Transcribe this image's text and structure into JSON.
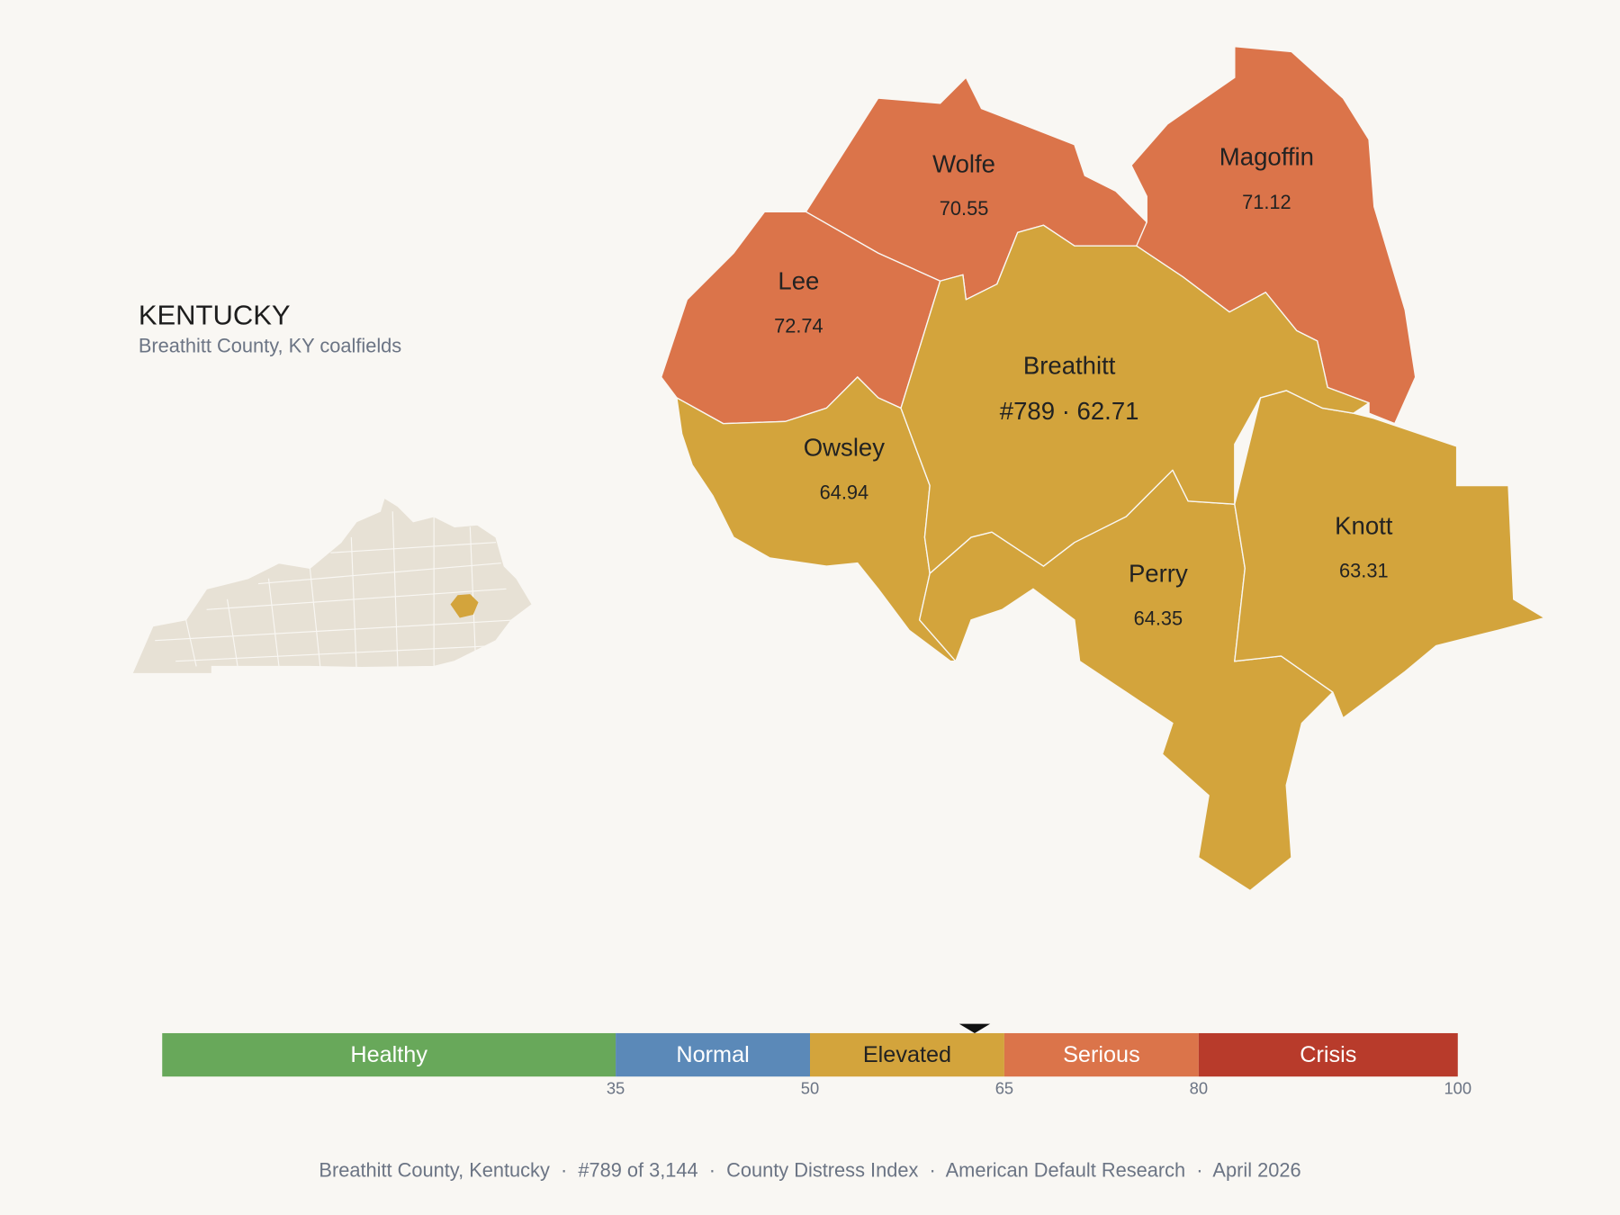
{
  "header": {
    "title": "KENTUCKY",
    "subtitle": "Breathitt County, KY coalfields"
  },
  "counties": [
    {
      "name": "Wolfe",
      "value": 70.55
    },
    {
      "name": "Magoffin",
      "value": 71.12
    },
    {
      "name": "Lee",
      "value": 72.74
    },
    {
      "name": "Breathitt",
      "value": 62.71,
      "label": "#789 · 62.71"
    },
    {
      "name": "Owsley",
      "value": 64.94
    },
    {
      "name": "Perry",
      "value": 64.35
    },
    {
      "name": "Knott",
      "value": 63.31
    }
  ],
  "scale": {
    "range": [
      0,
      100
    ],
    "ticks": [
      35,
      50,
      65,
      80,
      100
    ],
    "marker": 62.71,
    "segments": [
      {
        "name": "Healthy",
        "color": "#68a85a",
        "from": 0,
        "to": 35
      },
      {
        "name": "Normal",
        "color": "#5b89b8",
        "from": 35,
        "to": 50
      },
      {
        "name": "Elevated",
        "color": "#d3a43c",
        "from": 50,
        "to": 65
      },
      {
        "name": "Serious",
        "color": "#db744a",
        "from": 65,
        "to": 80
      },
      {
        "name": "Crisis",
        "color": "#b83b2b",
        "from": 80,
        "to": 100
      }
    ]
  },
  "footer": "Breathitt County, Kentucky  ·  #789 of 3,144  ·  County Distress Index  ·  American Default Research  ·  April 2026"
}
